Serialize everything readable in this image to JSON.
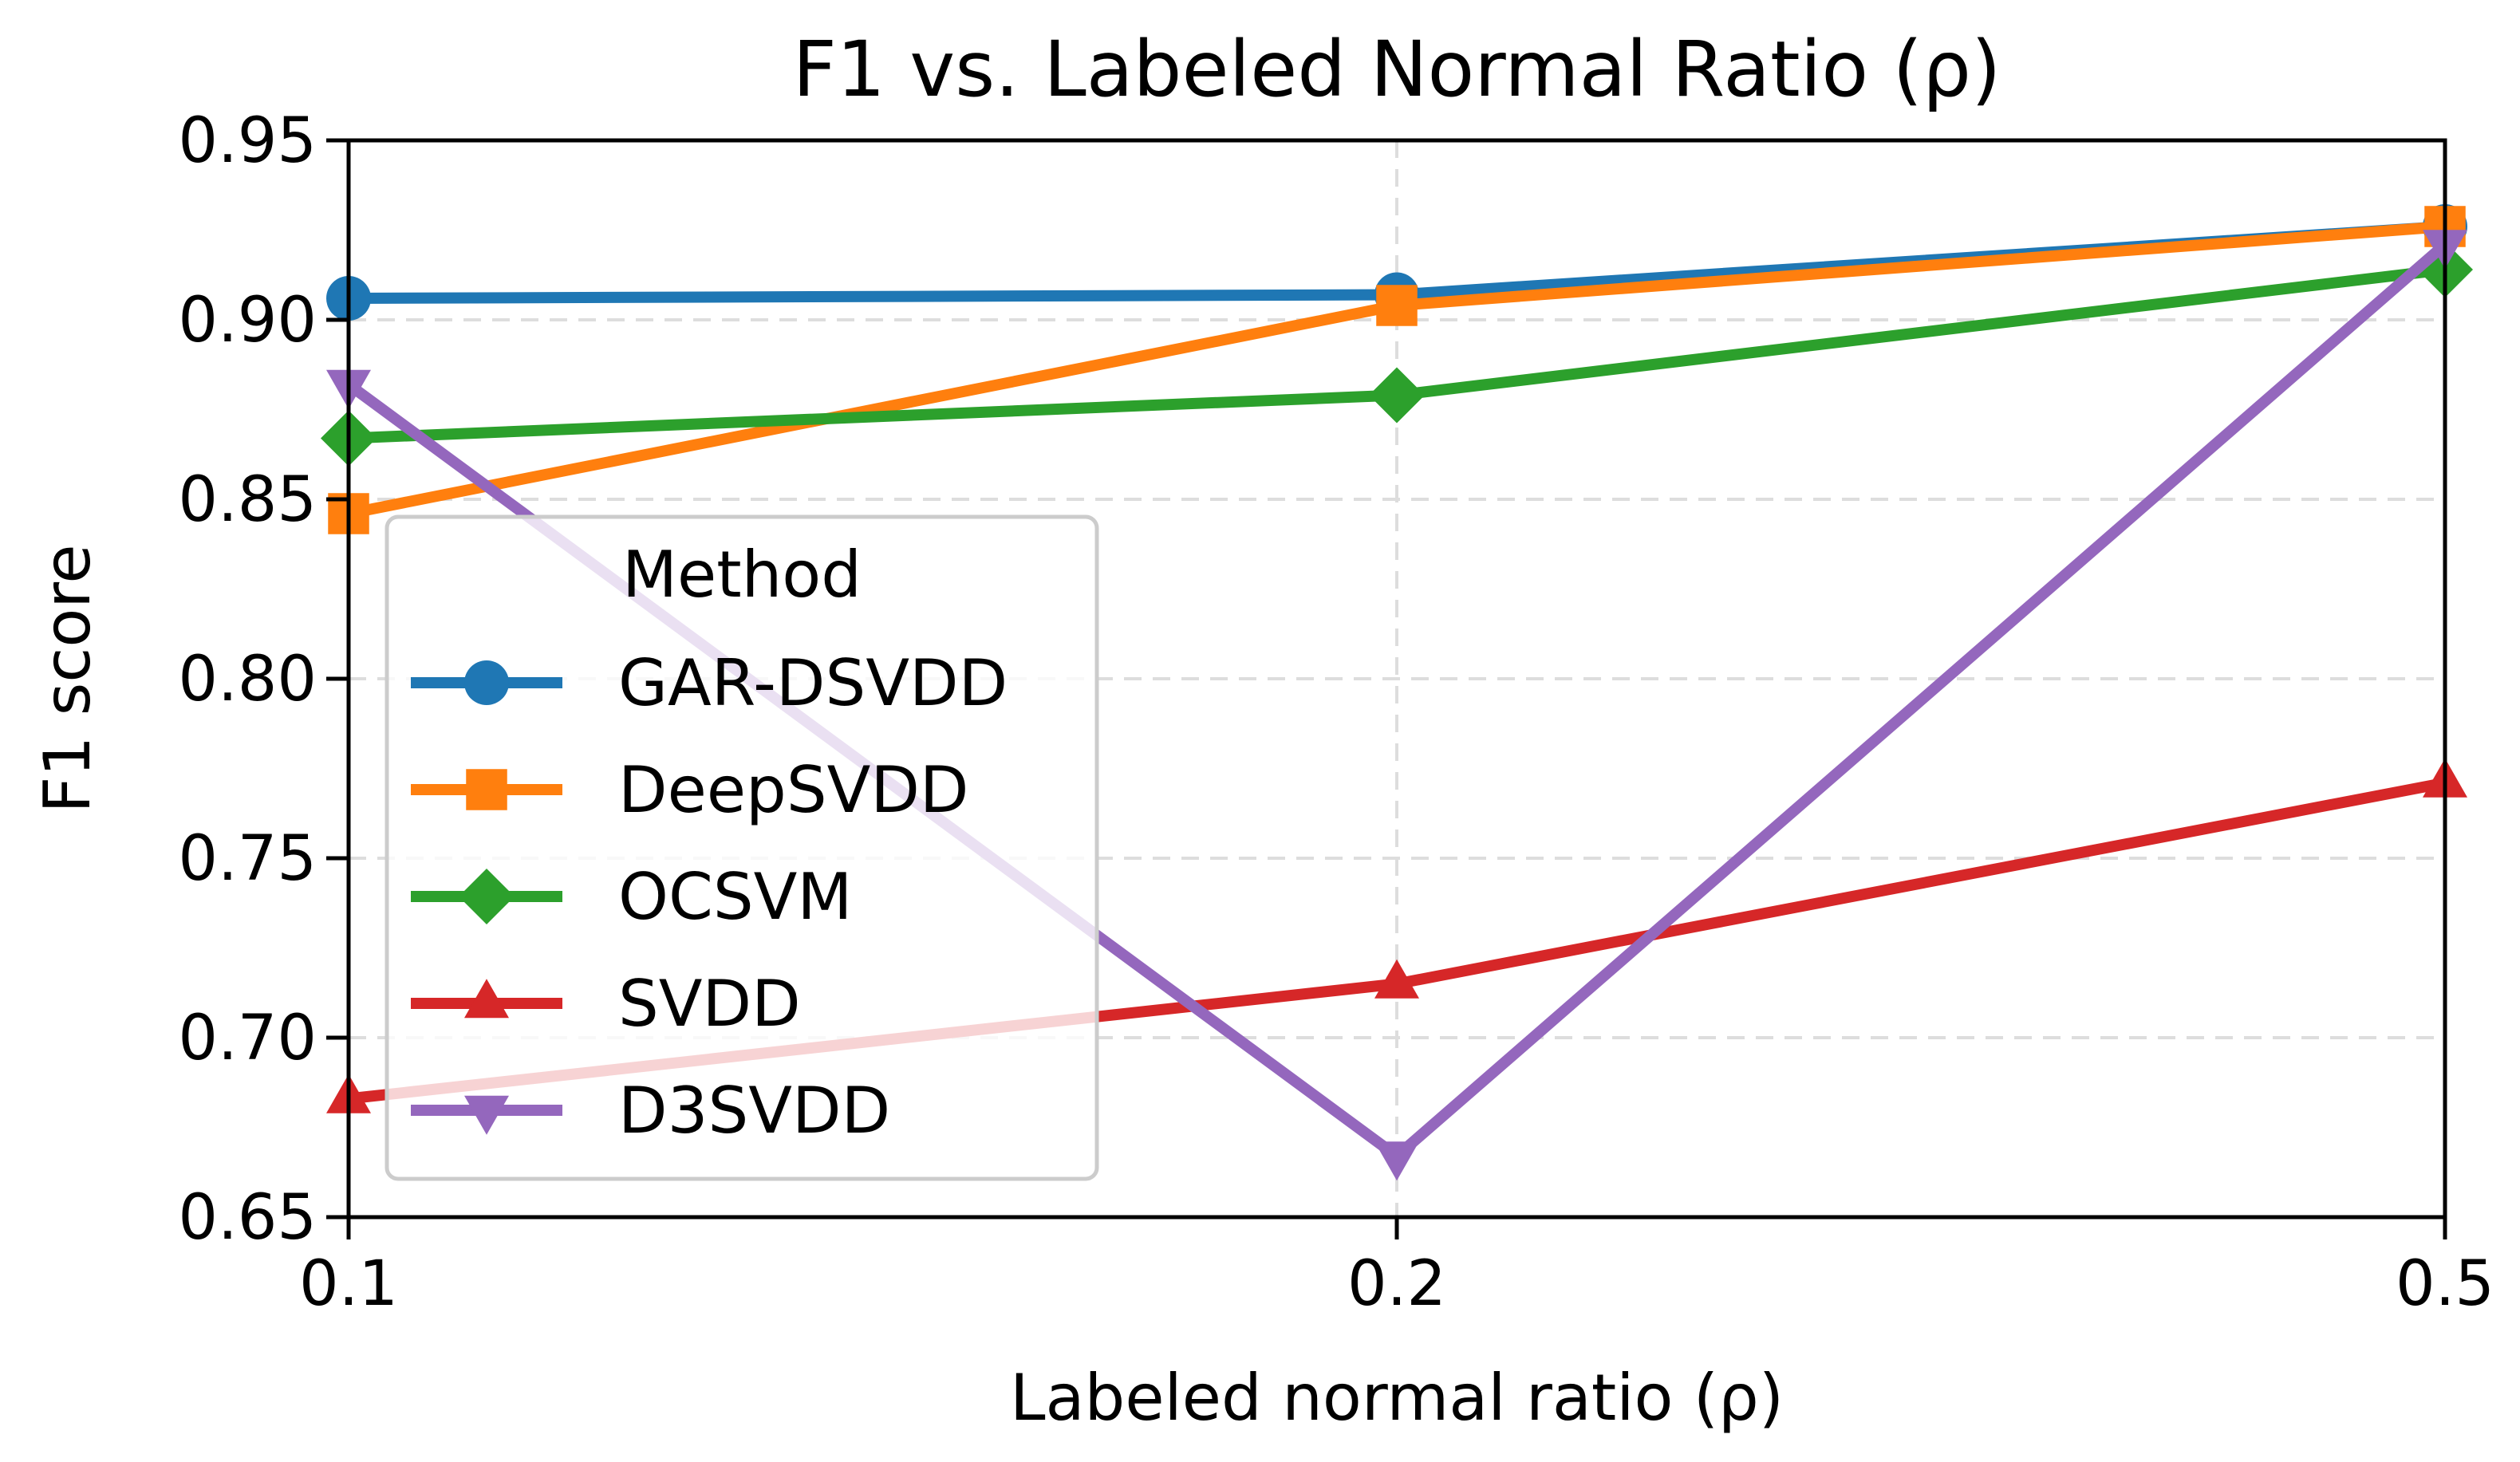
{
  "chart_data": {
    "type": "line",
    "title": "F1 vs. Labeled Normal Ratio (ρ)",
    "xlabel": "Labeled normal ratio (ρ)",
    "ylabel": "F1 score",
    "x": [
      "0.1",
      "0.2",
      "0.5"
    ],
    "x_scale": "categorical",
    "yticks": [
      "0.65",
      "0.70",
      "0.75",
      "0.80",
      "0.85",
      "0.90",
      "0.95"
    ],
    "ylim": [
      0.65,
      0.95
    ],
    "grid": true,
    "legend": {
      "title": "Method",
      "placement": "center-left"
    },
    "series": [
      {
        "name": "GAR-DSVDD",
        "values": [
          0.906,
          0.907,
          0.926
        ],
        "color": "#1f77b4",
        "marker": "circle"
      },
      {
        "name": "DeepSVDD",
        "values": [
          0.846,
          0.904,
          0.926
        ],
        "color": "#ff7f0e",
        "marker": "square"
      },
      {
        "name": "OCSVM",
        "values": [
          0.867,
          0.879,
          0.914
        ],
        "color": "#2ca02c",
        "marker": "diamond"
      },
      {
        "name": "SVDD",
        "values": [
          0.683,
          0.715,
          0.771
        ],
        "color": "#d62728",
        "marker": "triangle-up"
      },
      {
        "name": "D3SVDD",
        "values": [
          0.882,
          0.667,
          0.921
        ],
        "color": "#9467bd",
        "marker": "triangle-down"
      }
    ]
  }
}
